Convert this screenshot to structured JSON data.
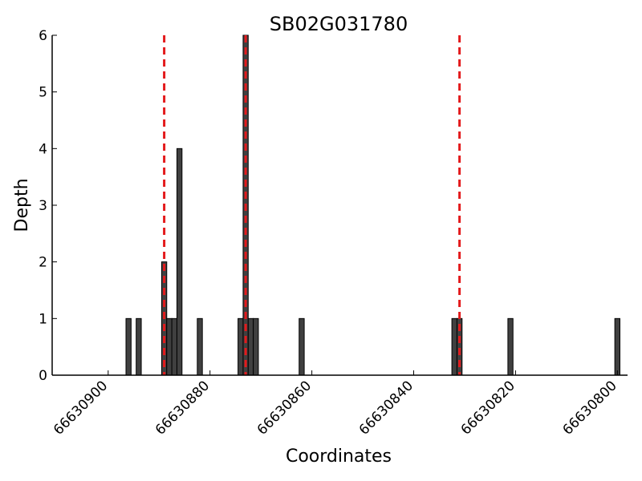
{
  "chart_data": {
    "type": "bar",
    "title": "SB02G031780",
    "xlabel": "Coordinates",
    "ylabel": "Depth",
    "x_reversed": true,
    "xlim": [
      66630911,
      66630798
    ],
    "ylim": [
      0,
      6
    ],
    "x_ticks": [
      66630900,
      66630880,
      66630860,
      66630840,
      66630820,
      66630800
    ],
    "x_tick_labels": [
      "66630900",
      "66630880",
      "66630860",
      "66630840",
      "66630820",
      "66630800"
    ],
    "y_ticks": [
      0,
      1,
      2,
      3,
      4,
      5,
      6
    ],
    "y_tick_labels": [
      "0",
      "1",
      "2",
      "3",
      "4",
      "5",
      "6"
    ],
    "grid": false,
    "bar_color": "#404040",
    "bar_edge_color": "#000000",
    "bars": [
      {
        "x": 66630896,
        "y": 1
      },
      {
        "x": 66630894,
        "y": 1
      },
      {
        "x": 66630889,
        "y": 2
      },
      {
        "x": 66630888,
        "y": 1
      },
      {
        "x": 66630887,
        "y": 1
      },
      {
        "x": 66630886,
        "y": 4
      },
      {
        "x": 66630882,
        "y": 1
      },
      {
        "x": 66630874,
        "y": 1
      },
      {
        "x": 66630873,
        "y": 6
      },
      {
        "x": 66630872,
        "y": 1
      },
      {
        "x": 66630871,
        "y": 1
      },
      {
        "x": 66630862,
        "y": 1
      },
      {
        "x": 66630832,
        "y": 1
      },
      {
        "x": 66630831,
        "y": 1
      },
      {
        "x": 66630821,
        "y": 1
      },
      {
        "x": 66630800,
        "y": 1
      }
    ],
    "reference_lines": [
      {
        "x": 66630889,
        "color": "#e31a1c",
        "style": "dashed"
      },
      {
        "x": 66630873,
        "color": "#e31a1c",
        "style": "dashed"
      },
      {
        "x": 66630831,
        "color": "#e31a1c",
        "style": "dashed"
      }
    ]
  }
}
